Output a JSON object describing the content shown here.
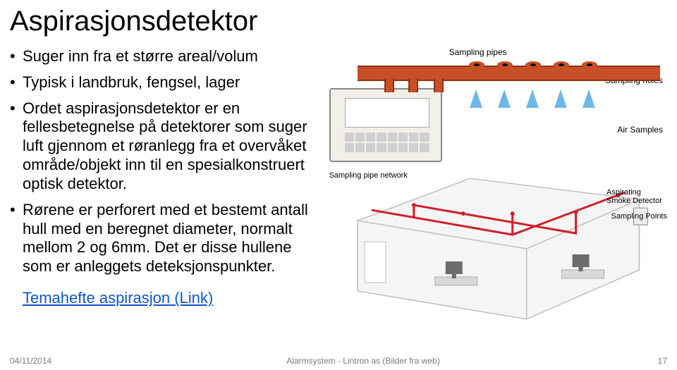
{
  "title": "Aspirasjonsdetektor",
  "bullets": [
    "Suger inn fra et større areal/volum",
    "Typisk i landbruk, fengsel, lager",
    "Ordet aspirasjonsdetektor er en fellesbetegnelse på detektorer som suger luft gjennom et røranlegg fra et overvåket område/objekt inn til en spesialkonstruert optisk detektor.",
    "Rørene er perforert med et bestemt antall hull med en beregnet diameter, normalt mellom 2 og 6mm. Det er disse hullene som er anleggets deteksjonspunkter."
  ],
  "link_text": "Temahefte aspirasjon (Link)",
  "footer": {
    "date": "04/11/2014",
    "center": "Alarmsystem - Lintron as (Bilder fra web)",
    "page": "17"
  },
  "top_diagram": {
    "labels": {
      "sampling_pipes": "Sampling pipes",
      "sampling_holes": "Sampling holes",
      "air_samples": "Air Samples"
    },
    "colors": {
      "pipe": "#c94f26",
      "pipe_border": "#8a3317",
      "panel_bg": "#f2efe9",
      "air_arrow": "#6fb7e6"
    },
    "vert_pipes_x": [
      78,
      112,
      148
    ],
    "holes_x": [
      200,
      240,
      280,
      320,
      360
    ],
    "air_arrows_x": [
      200,
      240,
      280,
      320,
      360
    ]
  },
  "bottom_diagram": {
    "labels": {
      "network": "Sampling pipe network",
      "detector": "Aspirating Smoke Detector",
      "points": "Sampling Points"
    },
    "colors": {
      "room_stroke": "#bfbfbf",
      "room_fill": "#f5f5f5",
      "pipe": "#d0202a",
      "desk": "#d9d9d9",
      "screen": "#6c6c6c"
    }
  }
}
